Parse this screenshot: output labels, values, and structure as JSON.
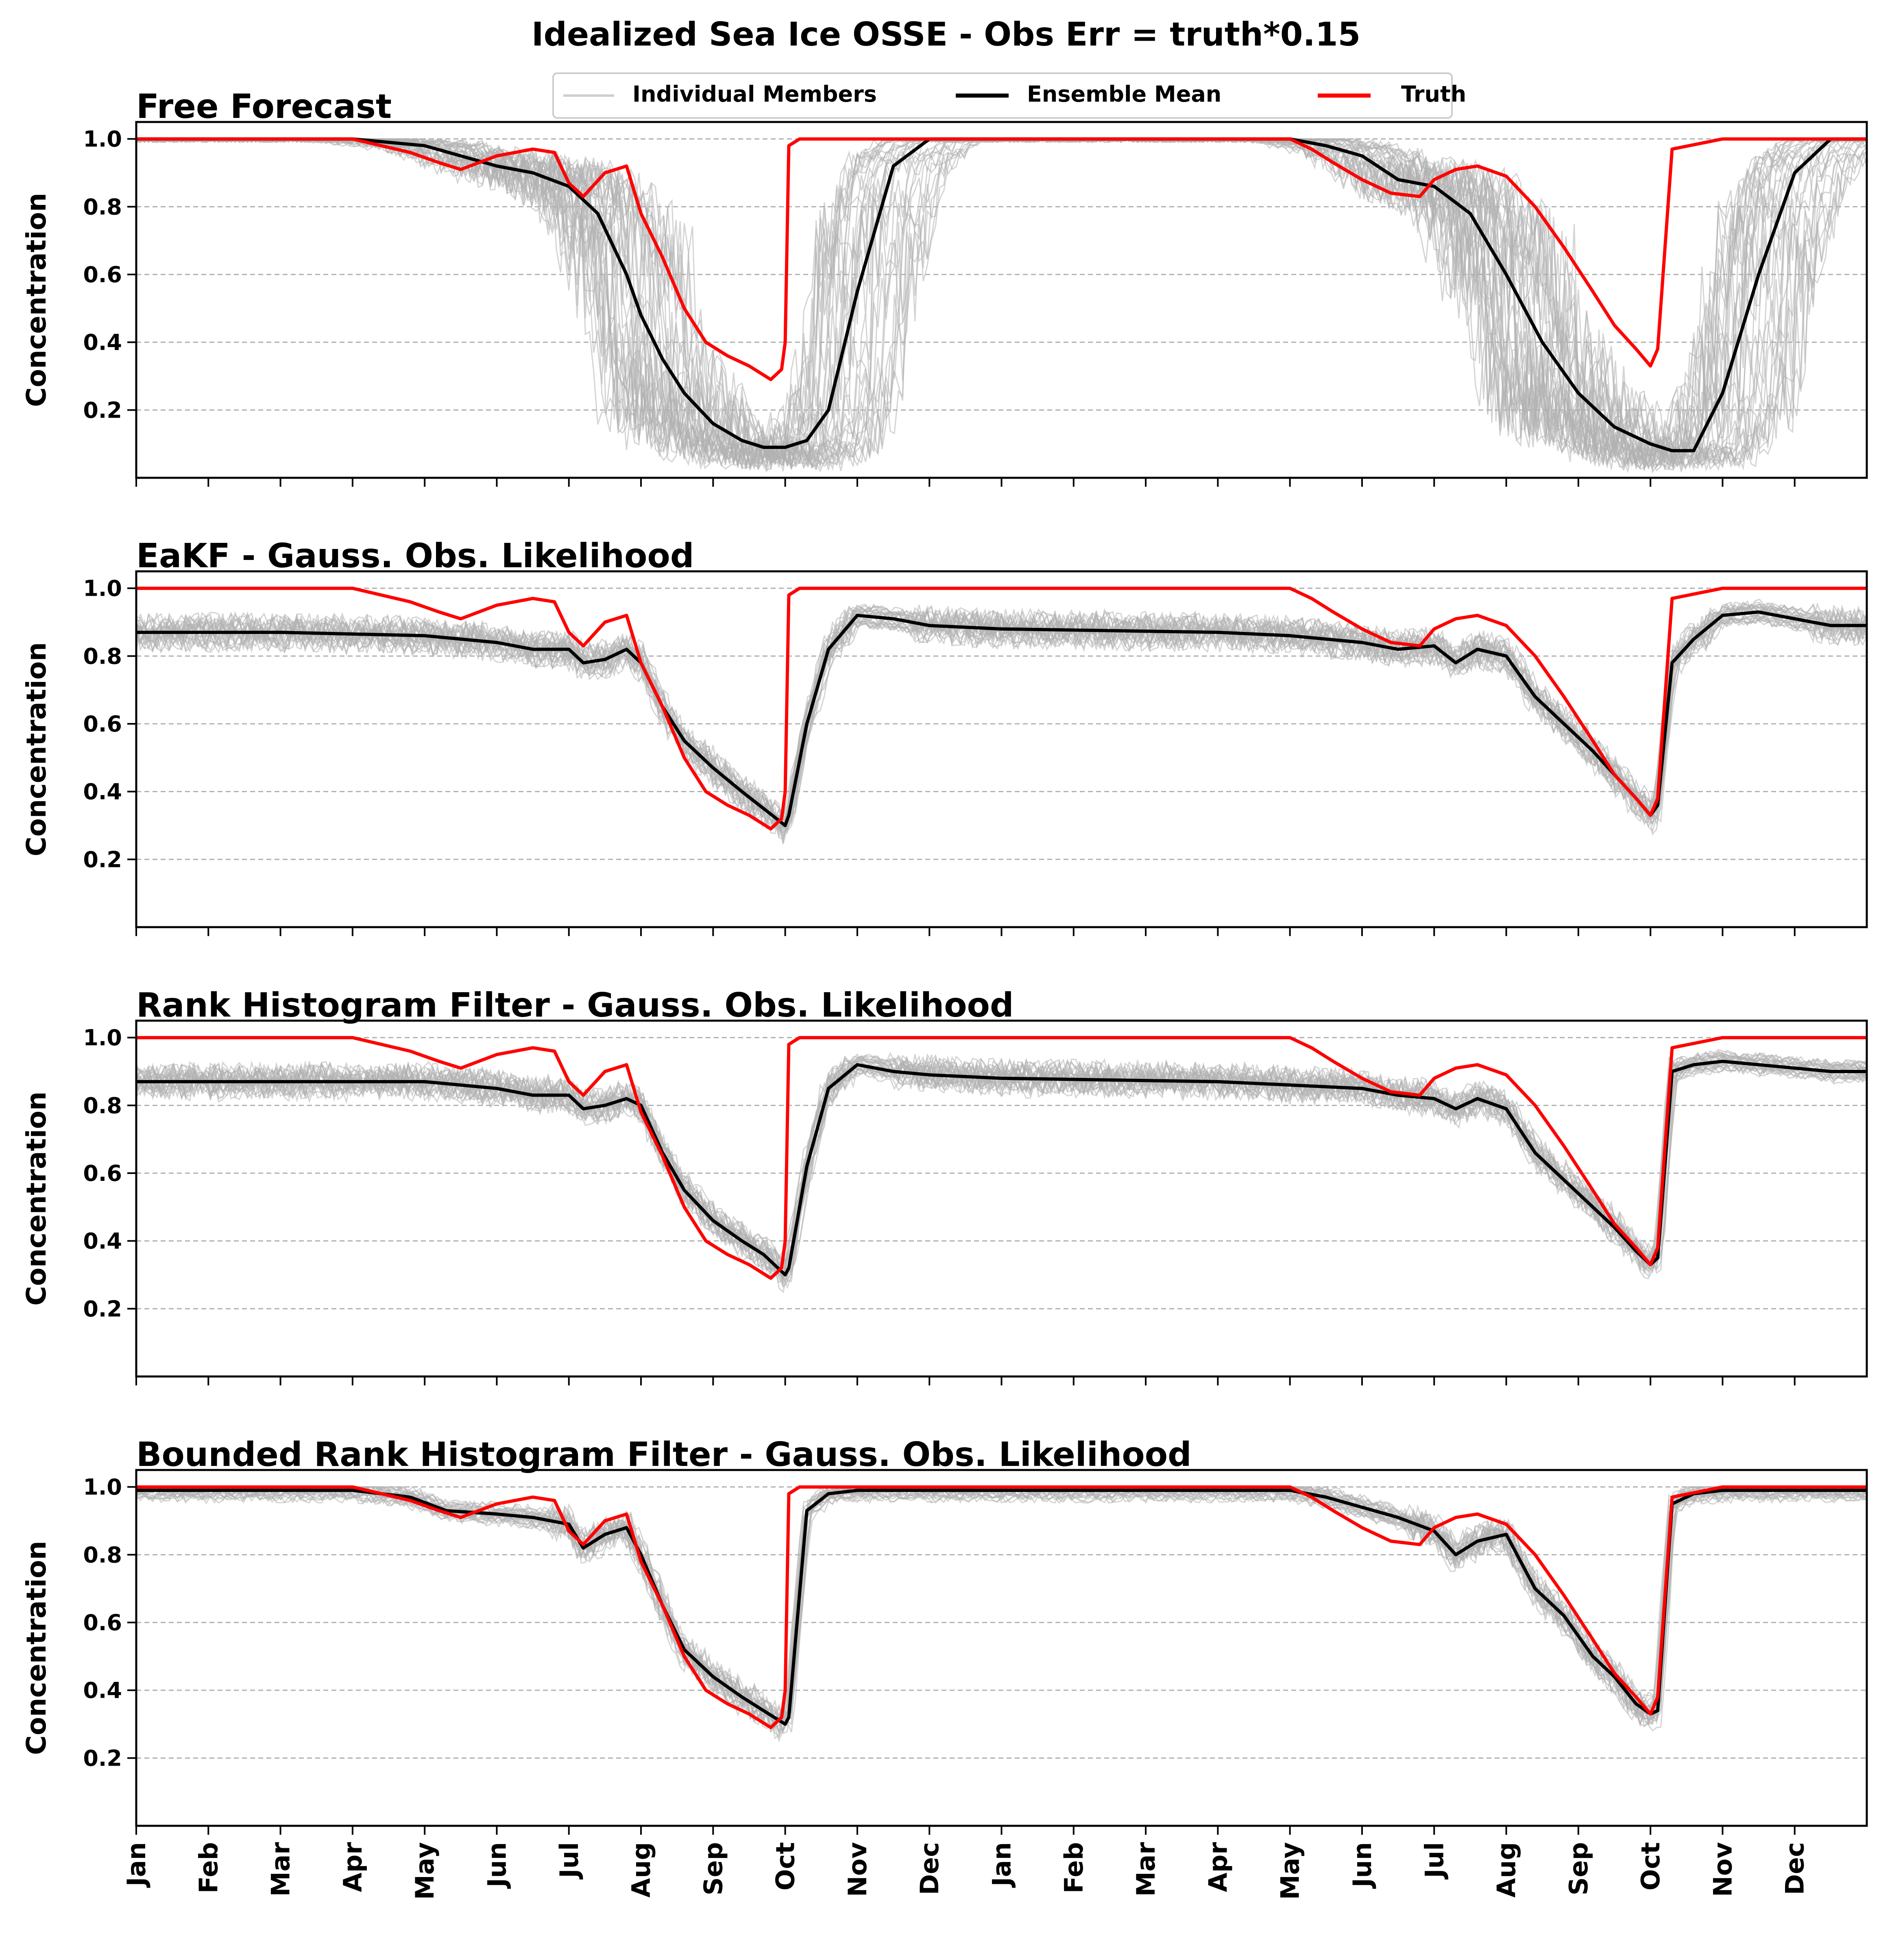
{
  "figure": {
    "title": "Idealized Sea Ice OSSE - Obs Err = truth*0.15"
  },
  "legend": {
    "members_label": "Individual Members",
    "mean_label": "Ensemble Mean",
    "truth_label": "Truth",
    "placement": "top-center"
  },
  "colors": {
    "members": "#b0b0b0",
    "mean": "#000000",
    "truth": "#ff0000",
    "grid": "#b0b0b0"
  },
  "chart_data": [
    {
      "type": "line",
      "title": "Free Forecast",
      "xlabel": "",
      "ylabel": "Concentration",
      "xticks": [
        "Jan",
        "Feb",
        "Mar",
        "Apr",
        "May",
        "Jun",
        "Jul",
        "Aug",
        "Sep",
        "Oct",
        "Nov",
        "Dec",
        "Jan",
        "Feb",
        "Mar",
        "Apr",
        "May",
        "Jun",
        "Jul",
        "Aug",
        "Sep",
        "Oct",
        "Nov",
        "Dec"
      ],
      "yticks": [
        "0.2",
        "0.4",
        "0.6",
        "0.8",
        "1.0"
      ],
      "ylim": [
        0.0,
        1.05
      ],
      "grid": "horizontal dashed",
      "x_units": "month index (0 = Jan year 1, 24 = end of Dec year 2)",
      "series": [
        {
          "name": "Ensemble Mean",
          "role": "mean",
          "x": [
            0,
            3,
            4,
            4.5,
            5,
            5.5,
            6,
            6.4,
            6.8,
            7,
            7.3,
            7.6,
            8,
            8.4,
            8.7,
            9,
            9.3,
            9.6,
            10,
            10.5,
            11,
            12,
            15,
            16,
            16.5,
            17,
            17.5,
            18,
            18.5,
            19,
            19.5,
            20,
            20.5,
            21,
            21.3,
            21.6,
            22,
            22.5,
            23,
            23.5,
            24
          ],
          "y": [
            1.0,
            1.0,
            0.98,
            0.95,
            0.92,
            0.9,
            0.86,
            0.78,
            0.6,
            0.48,
            0.35,
            0.25,
            0.16,
            0.11,
            0.09,
            0.09,
            0.11,
            0.2,
            0.55,
            0.92,
            1.0,
            1.0,
            1.0,
            1.0,
            0.98,
            0.95,
            0.88,
            0.86,
            0.78,
            0.6,
            0.4,
            0.25,
            0.15,
            0.1,
            0.08,
            0.08,
            0.25,
            0.6,
            0.9,
            1.0,
            1.0
          ]
        },
        {
          "name": "Truth",
          "role": "truth",
          "x": [
            0,
            3,
            3.8,
            4.2,
            4.5,
            5,
            5.5,
            5.8,
            6,
            6.2,
            6.5,
            6.8,
            7,
            7.3,
            7.6,
            7.9,
            8.2,
            8.5,
            8.8,
            8.95,
            9,
            9.05,
            9.2,
            10,
            11,
            12,
            15,
            16,
            16.3,
            16.6,
            17,
            17.4,
            17.8,
            18,
            18.3,
            18.6,
            19,
            19.4,
            19.8,
            20.2,
            20.5,
            20.8,
            21,
            21.1,
            21.3,
            22,
            24
          ],
          "y": [
            1.0,
            1.0,
            0.96,
            0.93,
            0.91,
            0.95,
            0.97,
            0.96,
            0.87,
            0.83,
            0.9,
            0.92,
            0.78,
            0.65,
            0.5,
            0.4,
            0.36,
            0.33,
            0.29,
            0.32,
            0.4,
            0.98,
            1.0,
            1.0,
            1.0,
            1.0,
            1.0,
            1.0,
            0.97,
            0.93,
            0.88,
            0.84,
            0.83,
            0.88,
            0.91,
            0.92,
            0.89,
            0.8,
            0.68,
            0.55,
            0.45,
            0.38,
            0.33,
            0.38,
            0.97,
            1.0,
            1.0
          ]
        }
      ]
    },
    {
      "type": "line",
      "title": "EaKF - Gauss. Obs. Likelihood",
      "xlabel": "",
      "ylabel": "Concentration",
      "xticks": [
        "Jan",
        "Feb",
        "Mar",
        "Apr",
        "May",
        "Jun",
        "Jul",
        "Aug",
        "Sep",
        "Oct",
        "Nov",
        "Dec",
        "Jan",
        "Feb",
        "Mar",
        "Apr",
        "May",
        "Jun",
        "Jul",
        "Aug",
        "Sep",
        "Oct",
        "Nov",
        "Dec"
      ],
      "yticks": [
        "0.2",
        "0.4",
        "0.6",
        "0.8",
        "1.0"
      ],
      "ylim": [
        0.0,
        1.05
      ],
      "grid": "horizontal dashed",
      "x_units": "month index (0 = Jan year 1, 24 = end of Dec year 2)",
      "series": [
        {
          "name": "Ensemble Mean",
          "role": "mean",
          "x": [
            0,
            2,
            4,
            5,
            5.5,
            6,
            6.2,
            6.5,
            6.8,
            7,
            7.3,
            7.6,
            8,
            8.4,
            8.7,
            9,
            9.05,
            9.3,
            9.6,
            10,
            10.5,
            11,
            12,
            15,
            16,
            17,
            17.5,
            18,
            18.3,
            18.6,
            19,
            19.4,
            19.8,
            20.2,
            20.5,
            20.8,
            21,
            21.1,
            21.3,
            21.6,
            22,
            22.5,
            23,
            23.5,
            24
          ],
          "y": [
            0.87,
            0.87,
            0.86,
            0.84,
            0.82,
            0.82,
            0.78,
            0.79,
            0.82,
            0.78,
            0.65,
            0.55,
            0.47,
            0.4,
            0.35,
            0.3,
            0.33,
            0.6,
            0.82,
            0.92,
            0.91,
            0.89,
            0.88,
            0.87,
            0.86,
            0.84,
            0.82,
            0.83,
            0.78,
            0.82,
            0.8,
            0.68,
            0.6,
            0.52,
            0.45,
            0.38,
            0.33,
            0.36,
            0.78,
            0.85,
            0.92,
            0.93,
            0.91,
            0.89,
            0.89
          ]
        },
        {
          "name": "Truth",
          "role": "truth",
          "x": [
            0,
            3,
            3.8,
            4.2,
            4.5,
            5,
            5.5,
            5.8,
            6,
            6.2,
            6.5,
            6.8,
            7,
            7.3,
            7.6,
            7.9,
            8.2,
            8.5,
            8.8,
            8.95,
            9,
            9.05,
            9.2,
            10,
            11,
            12,
            15,
            16,
            16.3,
            16.6,
            17,
            17.4,
            17.8,
            18,
            18.3,
            18.6,
            19,
            19.4,
            19.8,
            20.2,
            20.5,
            20.8,
            21,
            21.1,
            21.3,
            22,
            24
          ],
          "y": [
            1.0,
            1.0,
            0.96,
            0.93,
            0.91,
            0.95,
            0.97,
            0.96,
            0.87,
            0.83,
            0.9,
            0.92,
            0.78,
            0.65,
            0.5,
            0.4,
            0.36,
            0.33,
            0.29,
            0.32,
            0.4,
            0.98,
            1.0,
            1.0,
            1.0,
            1.0,
            1.0,
            1.0,
            0.97,
            0.93,
            0.88,
            0.84,
            0.83,
            0.88,
            0.91,
            0.92,
            0.89,
            0.8,
            0.68,
            0.55,
            0.45,
            0.38,
            0.33,
            0.38,
            0.97,
            1.0,
            1.0
          ]
        }
      ]
    },
    {
      "type": "line",
      "title": "Rank Histogram Filter - Gauss. Obs. Likelihood",
      "xlabel": "",
      "ylabel": "Concentration",
      "xticks": [
        "Jan",
        "Feb",
        "Mar",
        "Apr",
        "May",
        "Jun",
        "Jul",
        "Aug",
        "Sep",
        "Oct",
        "Nov",
        "Dec",
        "Jan",
        "Feb",
        "Mar",
        "Apr",
        "May",
        "Jun",
        "Jul",
        "Aug",
        "Sep",
        "Oct",
        "Nov",
        "Dec"
      ],
      "yticks": [
        "0.2",
        "0.4",
        "0.6",
        "0.8",
        "1.0"
      ],
      "ylim": [
        0.0,
        1.05
      ],
      "grid": "horizontal dashed",
      "x_units": "month index (0 = Jan year 1, 24 = end of Dec year 2)",
      "series": [
        {
          "name": "Ensemble Mean",
          "role": "mean",
          "x": [
            0,
            2,
            4,
            5,
            5.5,
            6,
            6.2,
            6.5,
            6.8,
            7,
            7.3,
            7.6,
            8,
            8.4,
            8.7,
            9,
            9.05,
            9.3,
            9.6,
            10,
            10.5,
            11,
            12,
            15,
            16,
            17,
            17.5,
            18,
            18.3,
            18.6,
            19,
            19.4,
            19.8,
            20.2,
            20.5,
            20.8,
            21,
            21.1,
            21.3,
            21.6,
            22,
            22.5,
            23,
            23.5,
            24
          ],
          "y": [
            0.87,
            0.87,
            0.87,
            0.85,
            0.83,
            0.83,
            0.79,
            0.8,
            0.82,
            0.8,
            0.66,
            0.55,
            0.46,
            0.4,
            0.36,
            0.3,
            0.32,
            0.62,
            0.85,
            0.92,
            0.9,
            0.89,
            0.88,
            0.87,
            0.86,
            0.85,
            0.83,
            0.82,
            0.79,
            0.82,
            0.79,
            0.66,
            0.58,
            0.5,
            0.44,
            0.37,
            0.33,
            0.35,
            0.9,
            0.92,
            0.93,
            0.92,
            0.91,
            0.9,
            0.9
          ]
        },
        {
          "name": "Truth",
          "role": "truth",
          "x": [
            0,
            3,
            3.8,
            4.2,
            4.5,
            5,
            5.5,
            5.8,
            6,
            6.2,
            6.5,
            6.8,
            7,
            7.3,
            7.6,
            7.9,
            8.2,
            8.5,
            8.8,
            8.95,
            9,
            9.05,
            9.2,
            10,
            11,
            12,
            15,
            16,
            16.3,
            16.6,
            17,
            17.4,
            17.8,
            18,
            18.3,
            18.6,
            19,
            19.4,
            19.8,
            20.2,
            20.5,
            20.8,
            21,
            21.1,
            21.3,
            22,
            24
          ],
          "y": [
            1.0,
            1.0,
            0.96,
            0.93,
            0.91,
            0.95,
            0.97,
            0.96,
            0.87,
            0.83,
            0.9,
            0.92,
            0.78,
            0.65,
            0.5,
            0.4,
            0.36,
            0.33,
            0.29,
            0.32,
            0.4,
            0.98,
            1.0,
            1.0,
            1.0,
            1.0,
            1.0,
            1.0,
            0.97,
            0.93,
            0.88,
            0.84,
            0.83,
            0.88,
            0.91,
            0.92,
            0.89,
            0.8,
            0.68,
            0.55,
            0.45,
            0.38,
            0.33,
            0.38,
            0.97,
            1.0,
            1.0
          ]
        }
      ]
    },
    {
      "type": "line",
      "title": "Bounded Rank Histogram Filter - Gauss. Obs. Likelihood",
      "xlabel": "",
      "ylabel": "Concentration",
      "xticks": [
        "Jan",
        "Feb",
        "Mar",
        "Apr",
        "May",
        "Jun",
        "Jul",
        "Aug",
        "Sep",
        "Oct",
        "Nov",
        "Dec",
        "Jan",
        "Feb",
        "Mar",
        "Apr",
        "May",
        "Jun",
        "Jul",
        "Aug",
        "Sep",
        "Oct",
        "Nov",
        "Dec"
      ],
      "yticks": [
        "0.2",
        "0.4",
        "0.6",
        "0.8",
        "1.0"
      ],
      "ylim": [
        0.0,
        1.05
      ],
      "grid": "horizontal dashed",
      "x_units": "month index (0 = Jan year 1, 24 = end of Dec year 2)",
      "series": [
        {
          "name": "Ensemble Mean",
          "role": "mean",
          "x": [
            0,
            3,
            3.8,
            4.3,
            5,
            5.5,
            6,
            6.2,
            6.5,
            6.8,
            7,
            7.3,
            7.6,
            8,
            8.4,
            8.7,
            9,
            9.05,
            9.3,
            9.6,
            10,
            11,
            12,
            15,
            16,
            16.5,
            17,
            17.5,
            18,
            18.3,
            18.6,
            19,
            19.4,
            19.8,
            20.2,
            20.5,
            20.8,
            21,
            21.1,
            21.3,
            21.6,
            22,
            23,
            24
          ],
          "y": [
            0.99,
            0.99,
            0.97,
            0.93,
            0.92,
            0.91,
            0.89,
            0.82,
            0.86,
            0.88,
            0.8,
            0.65,
            0.52,
            0.44,
            0.38,
            0.34,
            0.3,
            0.32,
            0.93,
            0.98,
            0.99,
            0.99,
            0.99,
            0.99,
            0.99,
            0.97,
            0.94,
            0.91,
            0.87,
            0.8,
            0.84,
            0.86,
            0.7,
            0.62,
            0.5,
            0.44,
            0.36,
            0.33,
            0.34,
            0.95,
            0.98,
            0.99,
            0.99,
            0.99
          ]
        },
        {
          "name": "Truth",
          "role": "truth",
          "x": [
            0,
            3,
            3.8,
            4.2,
            4.5,
            5,
            5.5,
            5.8,
            6,
            6.2,
            6.5,
            6.8,
            7,
            7.3,
            7.6,
            7.9,
            8.2,
            8.5,
            8.8,
            8.95,
            9,
            9.05,
            9.2,
            10,
            11,
            12,
            15,
            16,
            16.3,
            16.6,
            17,
            17.4,
            17.8,
            18,
            18.3,
            18.6,
            19,
            19.4,
            19.8,
            20.2,
            20.5,
            20.8,
            21,
            21.1,
            21.3,
            22,
            24
          ],
          "y": [
            1.0,
            1.0,
            0.96,
            0.93,
            0.91,
            0.95,
            0.97,
            0.96,
            0.87,
            0.83,
            0.9,
            0.92,
            0.78,
            0.65,
            0.5,
            0.4,
            0.36,
            0.33,
            0.29,
            0.32,
            0.4,
            0.98,
            1.0,
            1.0,
            1.0,
            1.0,
            1.0,
            1.0,
            0.97,
            0.93,
            0.88,
            0.84,
            0.83,
            0.88,
            0.91,
            0.92,
            0.89,
            0.8,
            0.68,
            0.55,
            0.45,
            0.38,
            0.33,
            0.38,
            0.97,
            1.0,
            1.0
          ]
        }
      ]
    }
  ]
}
